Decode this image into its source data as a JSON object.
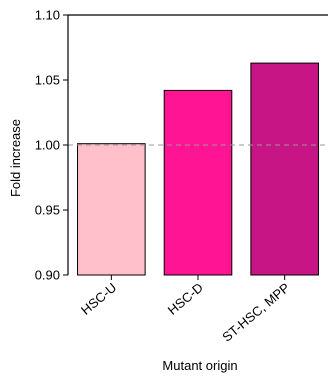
{
  "chart_data": {
    "type": "bar",
    "categories": [
      "HSC-U",
      "HSC-D",
      "ST-HSC, MPP"
    ],
    "values": [
      1.001,
      1.042,
      1.063
    ],
    "colors": [
      "#FFC0CB",
      "#FF1493",
      "#C71585"
    ],
    "xlabel": "Mutant origin",
    "ylabel": "Fold increase",
    "ylim": [
      0.9,
      1.1
    ],
    "yticks": [
      0.9,
      0.95,
      1.0,
      1.05,
      1.1
    ],
    "ytick_labels": [
      "0.90",
      "0.95",
      "1.00",
      "1.05",
      "1.10"
    ],
    "reference_line": 1.0,
    "reference_line_color": "#999999",
    "grid": false,
    "legend": "none"
  }
}
